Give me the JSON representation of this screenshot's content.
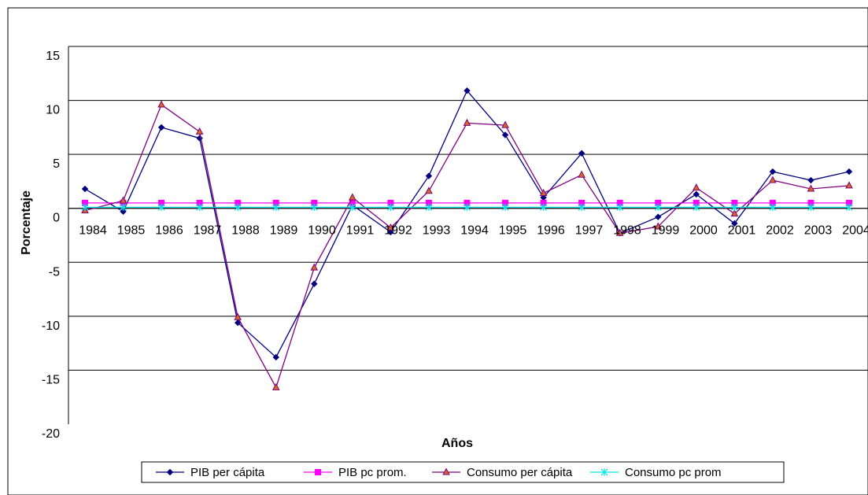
{
  "chart_data": {
    "type": "line",
    "title": "",
    "xlabel": "Años",
    "ylabel": "Porcentaje",
    "ylim": [
      -20,
      15
    ],
    "yticks": [
      15,
      10,
      5,
      0,
      -5,
      -10,
      -15,
      -20
    ],
    "categories": [
      "1984",
      "1985",
      "1986",
      "1987",
      "1988",
      "1989",
      "1990",
      "1991",
      "1992",
      "1993",
      "1994",
      "1995",
      "1996",
      "1997",
      "1998",
      "1999",
      "2000",
      "2001",
      "2002",
      "2003",
      "2004"
    ],
    "grid": true,
    "legend_position": "bottom",
    "series": [
      {
        "name": "PIB per cápita",
        "color": "#000080",
        "marker": "diamond",
        "values": [
          1.8,
          -0.3,
          7.5,
          6.5,
          -10.6,
          -13.8,
          -7.0,
          0.3,
          -2.2,
          3.0,
          10.9,
          6.8,
          1.0,
          5.1,
          -2.3,
          -0.8,
          1.3,
          -1.4,
          3.4,
          2.6,
          3.4
        ]
      },
      {
        "name": "PIB pc prom.",
        "color": "#FF00FF",
        "marker": "square",
        "values": [
          0.5,
          0.5,
          0.5,
          0.5,
          0.5,
          0.5,
          0.5,
          0.5,
          0.5,
          0.5,
          0.5,
          0.5,
          0.5,
          0.5,
          0.5,
          0.5,
          0.5,
          0.5,
          0.5,
          0.5,
          0.5
        ]
      },
      {
        "name": "Consumo per cápita",
        "color": "#800080",
        "marker": "triangle",
        "values": [
          -0.2,
          0.7,
          9.6,
          7.1,
          -10.1,
          -16.6,
          -5.5,
          1.0,
          -1.8,
          1.6,
          7.9,
          7.7,
          1.4,
          3.1,
          -2.3,
          -1.7,
          1.9,
          -0.5,
          2.6,
          1.8,
          2.1
        ]
      },
      {
        "name": "Consumo pc prom",
        "color": "#00E5E5",
        "marker": "star",
        "values": [
          0.1,
          0.1,
          0.1,
          0.1,
          0.1,
          0.1,
          0.1,
          0.1,
          0.1,
          0.1,
          0.1,
          0.1,
          0.1,
          0.1,
          0.1,
          0.1,
          0.1,
          0.1,
          0.1,
          0.1,
          0.1
        ]
      }
    ]
  }
}
